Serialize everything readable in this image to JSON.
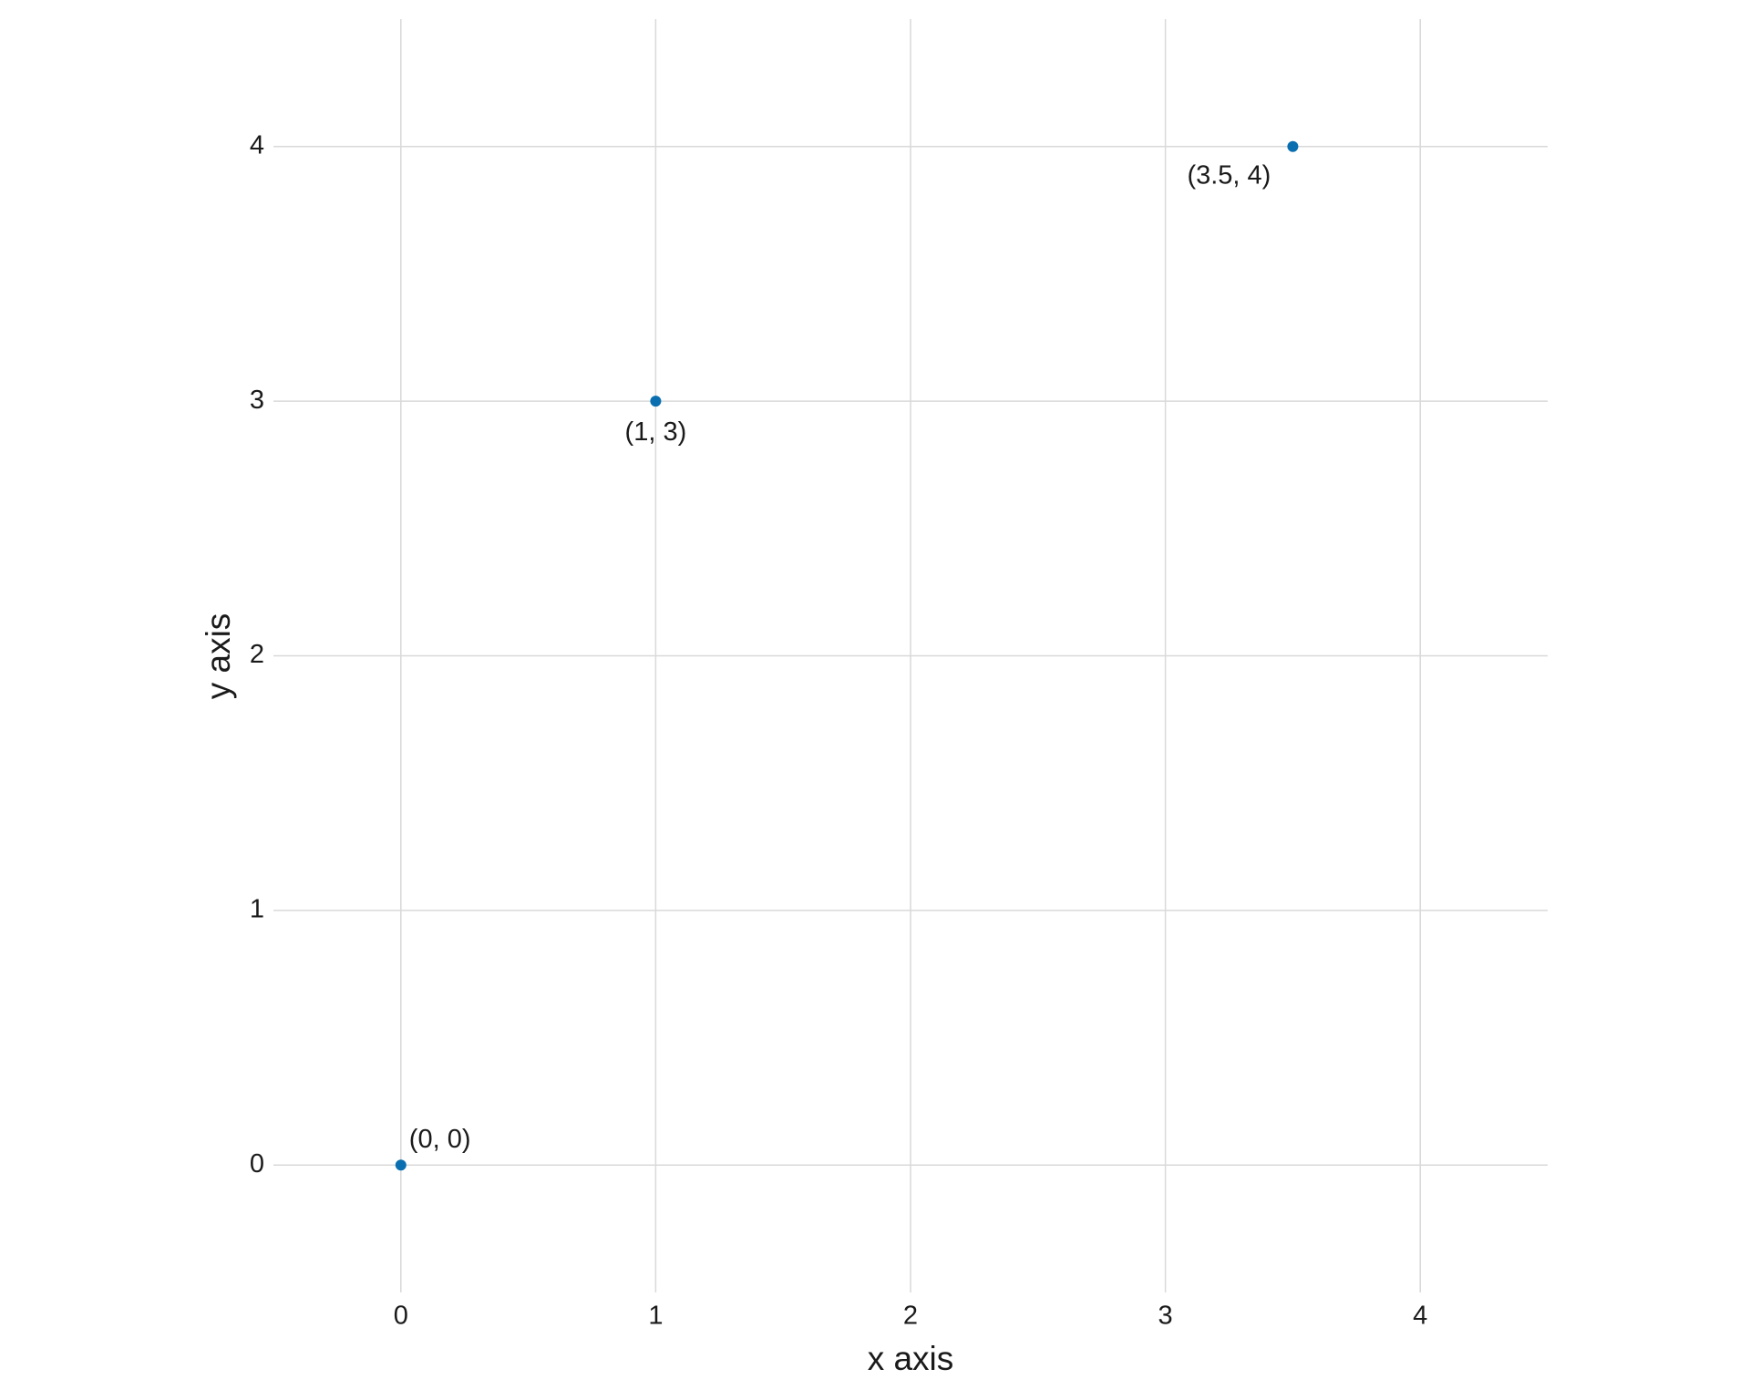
{
  "chart_data": {
    "type": "scatter",
    "x_label": "x axis",
    "y_label": "y axis",
    "x": [
      0,
      1,
      3.5
    ],
    "values": [
      0,
      3,
      4
    ],
    "value_labels": [
      "(0, 0)",
      "(1, 3)",
      "(3.5, 4)"
    ],
    "color": "#0a6fb0",
    "xlim": [
      -0.5,
      4.5
    ],
    "xticks": [
      0,
      1,
      2,
      3,
      4
    ],
    "ylim": [
      -0.5,
      4.5
    ],
    "yticks": [
      0,
      1,
      2,
      3,
      4
    ],
    "grid": true
  }
}
